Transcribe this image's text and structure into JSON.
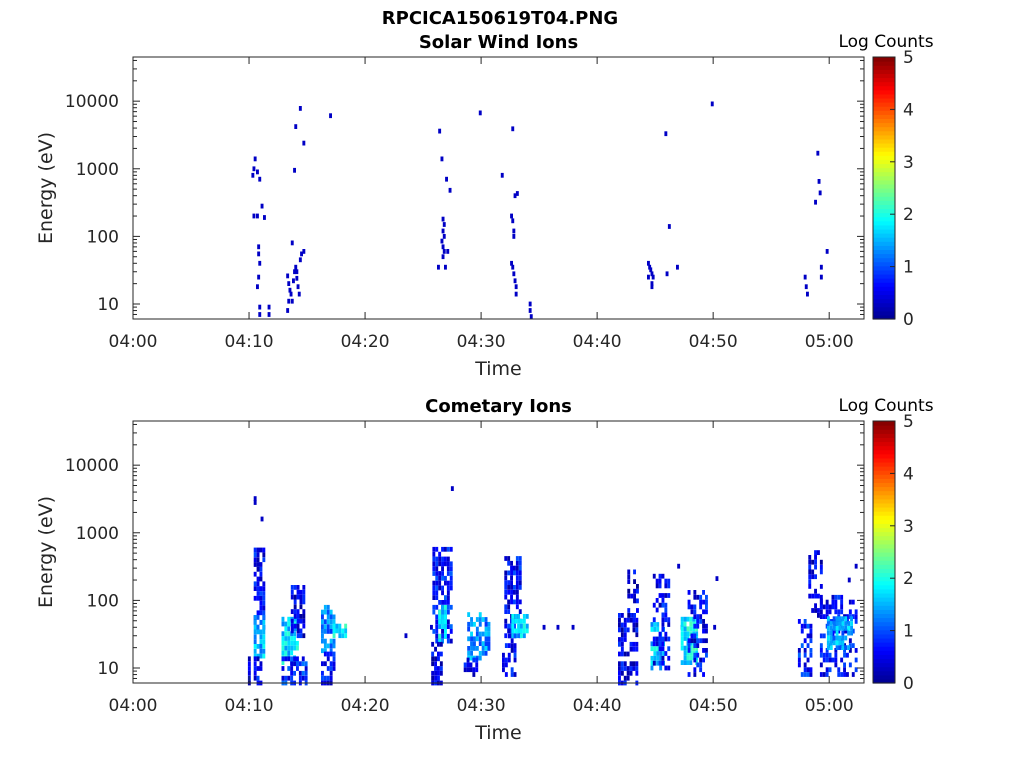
{
  "figure_title": "RPCICA150619T04.PNG",
  "colormap": [
    "#00008f",
    "#0000ff",
    "#007fff",
    "#00ffff",
    "#7fff7f",
    "#ffff00",
    "#ff7f00",
    "#ff0000",
    "#7f0000"
  ],
  "chart_data": [
    {
      "type": "heatmap",
      "title": "Solar Wind Ions",
      "xlabel": "Time",
      "ylabel": "Energy (eV)",
      "x_ticks": [
        "04:00",
        "04:10",
        "04:20",
        "04:30",
        "04:40",
        "04:50",
        "05:00"
      ],
      "x_range_minutes": [
        0,
        63
      ],
      "y_ticks": [
        "10",
        "100",
        "1000",
        "10000"
      ],
      "y_scale": "log",
      "y_range": [
        6,
        45000
      ],
      "colorbar": {
        "title": "Log Counts",
        "ticks": [
          "0",
          "1",
          "2",
          "3",
          "4",
          "5"
        ],
        "range": [
          0,
          5
        ]
      },
      "cells": [
        [
          10.2,
          800,
          0.3
        ],
        [
          10.3,
          1000,
          0.3
        ],
        [
          10.4,
          1400,
          0.3
        ],
        [
          10.6,
          900,
          0.3
        ],
        [
          10.8,
          700,
          0.3
        ],
        [
          10.3,
          200,
          0.3
        ],
        [
          10.6,
          200,
          0.3
        ],
        [
          11.2,
          190,
          0.3
        ],
        [
          11.0,
          280,
          0.3
        ],
        [
          10.7,
          70,
          0.3
        ],
        [
          10.7,
          55,
          0.3
        ],
        [
          10.8,
          40,
          0.3
        ],
        [
          10.7,
          25,
          0.3
        ],
        [
          10.6,
          18,
          0.3
        ],
        [
          10.8,
          9,
          0.3
        ],
        [
          10.8,
          7,
          0.3
        ],
        [
          11.6,
          9,
          0.3
        ],
        [
          11.6,
          7,
          0.3
        ],
        [
          13.2,
          26,
          0.3
        ],
        [
          13.3,
          20,
          0.3
        ],
        [
          13.4,
          16,
          0.3
        ],
        [
          13.5,
          14,
          0.3
        ],
        [
          13.7,
          22,
          0.3
        ],
        [
          13.8,
          30,
          0.3
        ],
        [
          13.6,
          11,
          0.3
        ],
        [
          13.3,
          11,
          0.3
        ],
        [
          13.2,
          8,
          0.3
        ],
        [
          13.9,
          35,
          0.3
        ],
        [
          14.0,
          30,
          0.3
        ],
        [
          14.0,
          24,
          0.3
        ],
        [
          14.1,
          18,
          0.3
        ],
        [
          14.2,
          14,
          0.3
        ],
        [
          14.3,
          45,
          0.3
        ],
        [
          14.4,
          55,
          0.3
        ],
        [
          14.6,
          60,
          0.3
        ],
        [
          13.6,
          80,
          0.3
        ],
        [
          13.8,
          950,
          0.3
        ],
        [
          13.9,
          4200,
          0.3
        ],
        [
          14.3,
          7800,
          0.3
        ],
        [
          14.6,
          2400,
          0.3
        ],
        [
          16.9,
          6100,
          0.3
        ],
        [
          26.3,
          3600,
          0.3
        ],
        [
          26.5,
          1400,
          0.3
        ],
        [
          26.9,
          700,
          0.3
        ],
        [
          27.2,
          480,
          0.3
        ],
        [
          26.6,
          180,
          0.3
        ],
        [
          26.7,
          150,
          0.3
        ],
        [
          26.6,
          120,
          0.3
        ],
        [
          26.7,
          100,
          0.3
        ],
        [
          26.5,
          85,
          0.3
        ],
        [
          26.6,
          70,
          0.3
        ],
        [
          26.7,
          60,
          0.3
        ],
        [
          26.6,
          50,
          0.3
        ],
        [
          27.0,
          60,
          0.3
        ],
        [
          26.2,
          35,
          0.3
        ],
        [
          26.8,
          35,
          0.3
        ],
        [
          29.8,
          6700,
          0.3
        ],
        [
          31.7,
          800,
          0.3
        ],
        [
          32.6,
          3900,
          0.3
        ],
        [
          32.8,
          400,
          0.3
        ],
        [
          33.0,
          430,
          0.3
        ],
        [
          32.5,
          200,
          0.3
        ],
        [
          32.6,
          170,
          0.3
        ],
        [
          32.7,
          120,
          0.3
        ],
        [
          32.7,
          100,
          0.3
        ],
        [
          32.5,
          40,
          0.3
        ],
        [
          32.6,
          35,
          0.3
        ],
        [
          32.7,
          28,
          0.3
        ],
        [
          32.8,
          22,
          0.3
        ],
        [
          32.9,
          18,
          0.3
        ],
        [
          32.9,
          14,
          0.3
        ],
        [
          34.1,
          10,
          0.3
        ],
        [
          34.1,
          8,
          0.3
        ],
        [
          34.2,
          6.5,
          0.3
        ],
        [
          44.3,
          40,
          0.3
        ],
        [
          44.4,
          35,
          0.3
        ],
        [
          44.5,
          32,
          0.3
        ],
        [
          44.6,
          28,
          0.3
        ],
        [
          44.3,
          25,
          0.3
        ],
        [
          44.7,
          25,
          0.3
        ],
        [
          44.6,
          20,
          0.3
        ],
        [
          44.6,
          18,
          0.3
        ],
        [
          45.8,
          3300,
          0.3
        ],
        [
          46.1,
          140,
          0.3
        ],
        [
          45.9,
          28,
          0.3
        ],
        [
          46.8,
          35,
          0.3
        ],
        [
          49.8,
          9100,
          0.3
        ],
        [
          57.8,
          25,
          0.3
        ],
        [
          57.9,
          18,
          0.3
        ],
        [
          58.0,
          14,
          0.3
        ],
        [
          58.7,
          320,
          0.3
        ],
        [
          58.9,
          1700,
          0.3
        ],
        [
          59.0,
          650,
          0.3
        ],
        [
          59.1,
          440,
          0.3
        ],
        [
          59.2,
          35,
          0.3
        ],
        [
          59.2,
          25,
          0.3
        ],
        [
          59.7,
          60,
          0.3
        ]
      ]
    },
    {
      "type": "heatmap",
      "title": "Cometary Ions",
      "xlabel": "Time",
      "ylabel": "Energy (eV)",
      "x_ticks": [
        "04:00",
        "04:10",
        "04:20",
        "04:30",
        "04:40",
        "04:50",
        "05:00"
      ],
      "x_range_minutes": [
        0,
        63
      ],
      "y_ticks": [
        "10",
        "100",
        "1000",
        "10000"
      ],
      "y_scale": "log",
      "y_range": [
        6,
        45000
      ],
      "colorbar": {
        "title": "Log Counts",
        "ticks": [
          "0",
          "1",
          "2",
          "3",
          "4",
          "5"
        ],
        "range": [
          0,
          5
        ]
      },
      "clusters": [
        {
          "t0": 9.9,
          "t1": 10.0,
          "e0": 6,
          "e1": 16,
          "v": 0.3,
          "density": 1.0
        },
        {
          "t0": 10.4,
          "t1": 11.3,
          "e0": 40,
          "e1": 640,
          "v": 0.6,
          "density": 0.7
        },
        {
          "t0": 10.4,
          "t1": 11.3,
          "e0": 15,
          "e1": 60,
          "v": 1.5,
          "density": 0.8
        },
        {
          "t0": 10.4,
          "t1": 11.0,
          "e0": 6,
          "e1": 15,
          "v": 0.6,
          "density": 0.7
        },
        {
          "t0": 12.8,
          "t1": 14.2,
          "e0": 12,
          "e1": 60,
          "v": 1.7,
          "density": 0.8
        },
        {
          "t0": 12.8,
          "t1": 14.8,
          "e0": 6,
          "e1": 14,
          "v": 0.8,
          "density": 0.6
        },
        {
          "t0": 13.6,
          "t1": 14.7,
          "e0": 30,
          "e1": 160,
          "v": 0.5,
          "density": 0.7
        },
        {
          "t0": 16.2,
          "t1": 17.4,
          "e0": 18,
          "e1": 80,
          "v": 1.2,
          "density": 0.7
        },
        {
          "t0": 16.2,
          "t1": 17.2,
          "e0": 6,
          "e1": 18,
          "v": 0.6,
          "density": 0.7
        },
        {
          "t0": 17.2,
          "t1": 18.2,
          "e0": 30,
          "e1": 45,
          "v": 1.8,
          "density": 0.9
        },
        {
          "t0": 25.8,
          "t1": 27.3,
          "e0": 25,
          "e1": 600,
          "v": 0.7,
          "density": 0.7
        },
        {
          "t0": 26.3,
          "t1": 27.0,
          "e0": 25,
          "e1": 80,
          "v": 1.7,
          "density": 0.8
        },
        {
          "t0": 25.7,
          "t1": 26.6,
          "e0": 6,
          "e1": 25,
          "v": 0.5,
          "density": 0.7
        },
        {
          "t0": 28.8,
          "t1": 30.6,
          "e0": 14,
          "e1": 70,
          "v": 1.3,
          "density": 0.6
        },
        {
          "t0": 28.5,
          "t1": 29.6,
          "e0": 8,
          "e1": 14,
          "v": 0.5,
          "density": 0.6
        },
        {
          "t0": 32.0,
          "t1": 33.4,
          "e0": 30,
          "e1": 450,
          "v": 0.6,
          "density": 0.7
        },
        {
          "t0": 32.6,
          "t1": 34.0,
          "e0": 30,
          "e1": 60,
          "v": 1.6,
          "density": 0.8
        },
        {
          "t0": 31.8,
          "t1": 33.0,
          "e0": 8,
          "e1": 30,
          "v": 0.6,
          "density": 0.6
        },
        {
          "t0": 41.8,
          "t1": 43.5,
          "e0": 6,
          "e1": 60,
          "v": 0.5,
          "density": 0.6
        },
        {
          "t0": 42.6,
          "t1": 43.5,
          "e0": 60,
          "e1": 280,
          "v": 0.4,
          "density": 0.5
        },
        {
          "t0": 44.6,
          "t1": 45.6,
          "e0": 10,
          "e1": 50,
          "v": 1.7,
          "density": 0.7
        },
        {
          "t0": 44.8,
          "t1": 46.2,
          "e0": 10,
          "e1": 260,
          "v": 0.6,
          "density": 0.5
        },
        {
          "t0": 47.2,
          "t1": 48.6,
          "e0": 12,
          "e1": 60,
          "v": 1.8,
          "density": 0.8
        },
        {
          "t0": 47.8,
          "t1": 49.4,
          "e0": 8,
          "e1": 150,
          "v": 0.6,
          "density": 0.5
        },
        {
          "t0": 57.3,
          "t1": 58.5,
          "e0": 8,
          "e1": 50,
          "v": 0.7,
          "density": 0.6
        },
        {
          "t0": 58.2,
          "t1": 59.2,
          "e0": 60,
          "e1": 550,
          "v": 0.4,
          "density": 0.5
        },
        {
          "t0": 59.2,
          "t1": 62.4,
          "e0": 8,
          "e1": 120,
          "v": 0.6,
          "density": 0.5
        },
        {
          "t0": 59.8,
          "t1": 61.8,
          "e0": 20,
          "e1": 60,
          "v": 1.4,
          "density": 0.7
        }
      ],
      "cells": [
        [
          10.4,
          3200,
          0.3
        ],
        [
          10.4,
          2800,
          0.3
        ],
        [
          11.0,
          1600,
          0.3
        ],
        [
          27.4,
          4500,
          0.3
        ],
        [
          23.4,
          30,
          0.3
        ],
        [
          25.6,
          40,
          0.3
        ],
        [
          35.3,
          40,
          0.3
        ],
        [
          36.5,
          40,
          0.3
        ],
        [
          37.8,
          40,
          0.3
        ],
        [
          46.9,
          320,
          0.3
        ],
        [
          47.2,
          40,
          0.3
        ],
        [
          50.0,
          40,
          0.3
        ],
        [
          50.2,
          210,
          0.3
        ],
        [
          62.2,
          320,
          0.3
        ],
        [
          61.6,
          200,
          0.3
        ]
      ]
    }
  ]
}
